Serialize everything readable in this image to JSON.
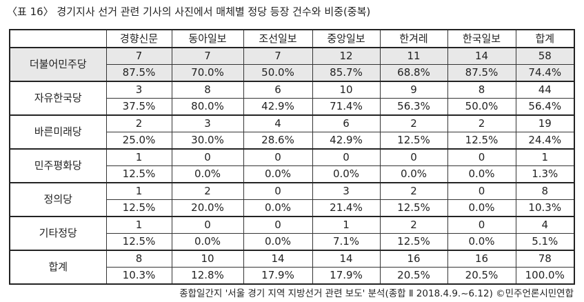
{
  "title": "〈표 16〉 경기지사 선거 관련 기사의 사진에서 매체별 정당 등장 건수와 비중(중복)",
  "table": {
    "header": [
      "경향신문",
      "동아일보",
      "조선일보",
      "중앙일보",
      "한겨레",
      "한국일보",
      "합계"
    ],
    "rows": [
      {
        "label": "더불어민주당",
        "counts": [
          7,
          7,
          7,
          12,
          11,
          14,
          58
        ],
        "percents": [
          "87.5%",
          "70.0%",
          "50.0%",
          "85.7%",
          "68.8%",
          "87.5%",
          "74.4%"
        ]
      },
      {
        "label": "자유한국당",
        "counts": [
          3,
          8,
          6,
          10,
          9,
          8,
          44
        ],
        "percents": [
          "37.5%",
          "80.0%",
          "42.9%",
          "71.4%",
          "56.3%",
          "50.0%",
          "56.4%"
        ]
      },
      {
        "label": "바른미래당",
        "counts": [
          2,
          3,
          4,
          6,
          2,
          2,
          19
        ],
        "percents": [
          "25.0%",
          "30.0%",
          "28.6%",
          "42.9%",
          "12.5%",
          "12.5%",
          "24.4%"
        ]
      },
      {
        "label": "민주평화당",
        "counts": [
          1,
          0,
          0,
          0,
          0,
          0,
          1
        ],
        "percents": [
          "12.5%",
          "0.0%",
          "0.0%",
          "0.0%",
          "0.0%",
          "0.0%",
          "1.3%"
        ]
      },
      {
        "label": "정의당",
        "counts": [
          1,
          2,
          0,
          3,
          2,
          0,
          8
        ],
        "percents": [
          "12.5%",
          "20.0%",
          "0.0%",
          "21.4%",
          "12.5%",
          "0.0%",
          "10.3%"
        ]
      },
      {
        "label": "기타정당",
        "counts": [
          1,
          0,
          0,
          1,
          2,
          0,
          4
        ],
        "percents": [
          "12.5%",
          "0.0%",
          "0.0%",
          "7.1%",
          "12.5%",
          "0.0%",
          "5.1%"
        ]
      },
      {
        "label": "합계",
        "counts": [
          8,
          10,
          14,
          14,
          16,
          16,
          78
        ],
        "percents": [
          "10.3%",
          "12.8%",
          "17.9%",
          "17.9%",
          "20.5%",
          "20.5%",
          "100.0%"
        ]
      }
    ]
  },
  "footer": "종합일간지 '서울 경기 지역 지방선거 관련 보도' 분석(종합 Ⅱ 2018.4.9.~6.12) ©민주언론시민연합"
}
